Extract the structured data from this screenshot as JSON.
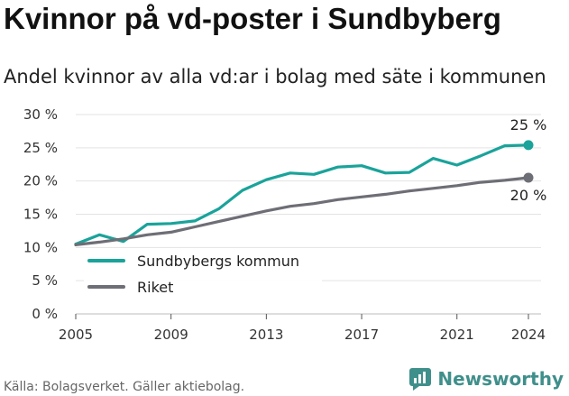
{
  "title": "Kvinnor på vd-poster i Sundbyberg",
  "subtitle": "Andel kvinnor av alla vd:ar i bolag med säte i kommunen",
  "footer": "Källa: Bolagsverket. Gäller aktiebolag.",
  "brand": "Newsworthy",
  "colors": {
    "teal": "#1aa39a",
    "gray": "#6e6e76",
    "brand": "#3f8f8b"
  },
  "chart_data": {
    "type": "line",
    "x": [
      2005,
      2006,
      2007,
      2008,
      2009,
      2010,
      2011,
      2012,
      2013,
      2014,
      2015,
      2016,
      2017,
      2018,
      2019,
      2020,
      2021,
      2022,
      2023,
      2024
    ],
    "series": [
      {
        "name": "Sundbybergs kommun",
        "color": "#1aa39a",
        "values": [
          10.5,
          11.9,
          10.9,
          13.5,
          13.6,
          14.0,
          15.8,
          18.6,
          20.2,
          21.2,
          21.0,
          22.1,
          22.3,
          21.2,
          21.3,
          23.4,
          22.4,
          23.8,
          25.3,
          25.4
        ],
        "end_label": "25 %"
      },
      {
        "name": "Riket",
        "color": "#6e6e76",
        "values": [
          10.4,
          10.8,
          11.3,
          11.9,
          12.3,
          13.1,
          13.9,
          14.7,
          15.5,
          16.2,
          16.6,
          17.2,
          17.6,
          18.0,
          18.5,
          18.9,
          19.3,
          19.8,
          20.1,
          20.5
        ],
        "end_label": "20 %"
      }
    ],
    "yticks": [
      "0 %",
      "5 %",
      "10 %",
      "15 %",
      "20 %",
      "25 %",
      "30 %"
    ],
    "ytick_values": [
      0,
      5,
      10,
      15,
      20,
      25,
      30
    ],
    "xticks": [
      2005,
      2009,
      2013,
      2017,
      2021,
      2024
    ],
    "ylim": [
      0,
      30
    ],
    "legend_position": "lower-left",
    "grid": "horizontal"
  }
}
